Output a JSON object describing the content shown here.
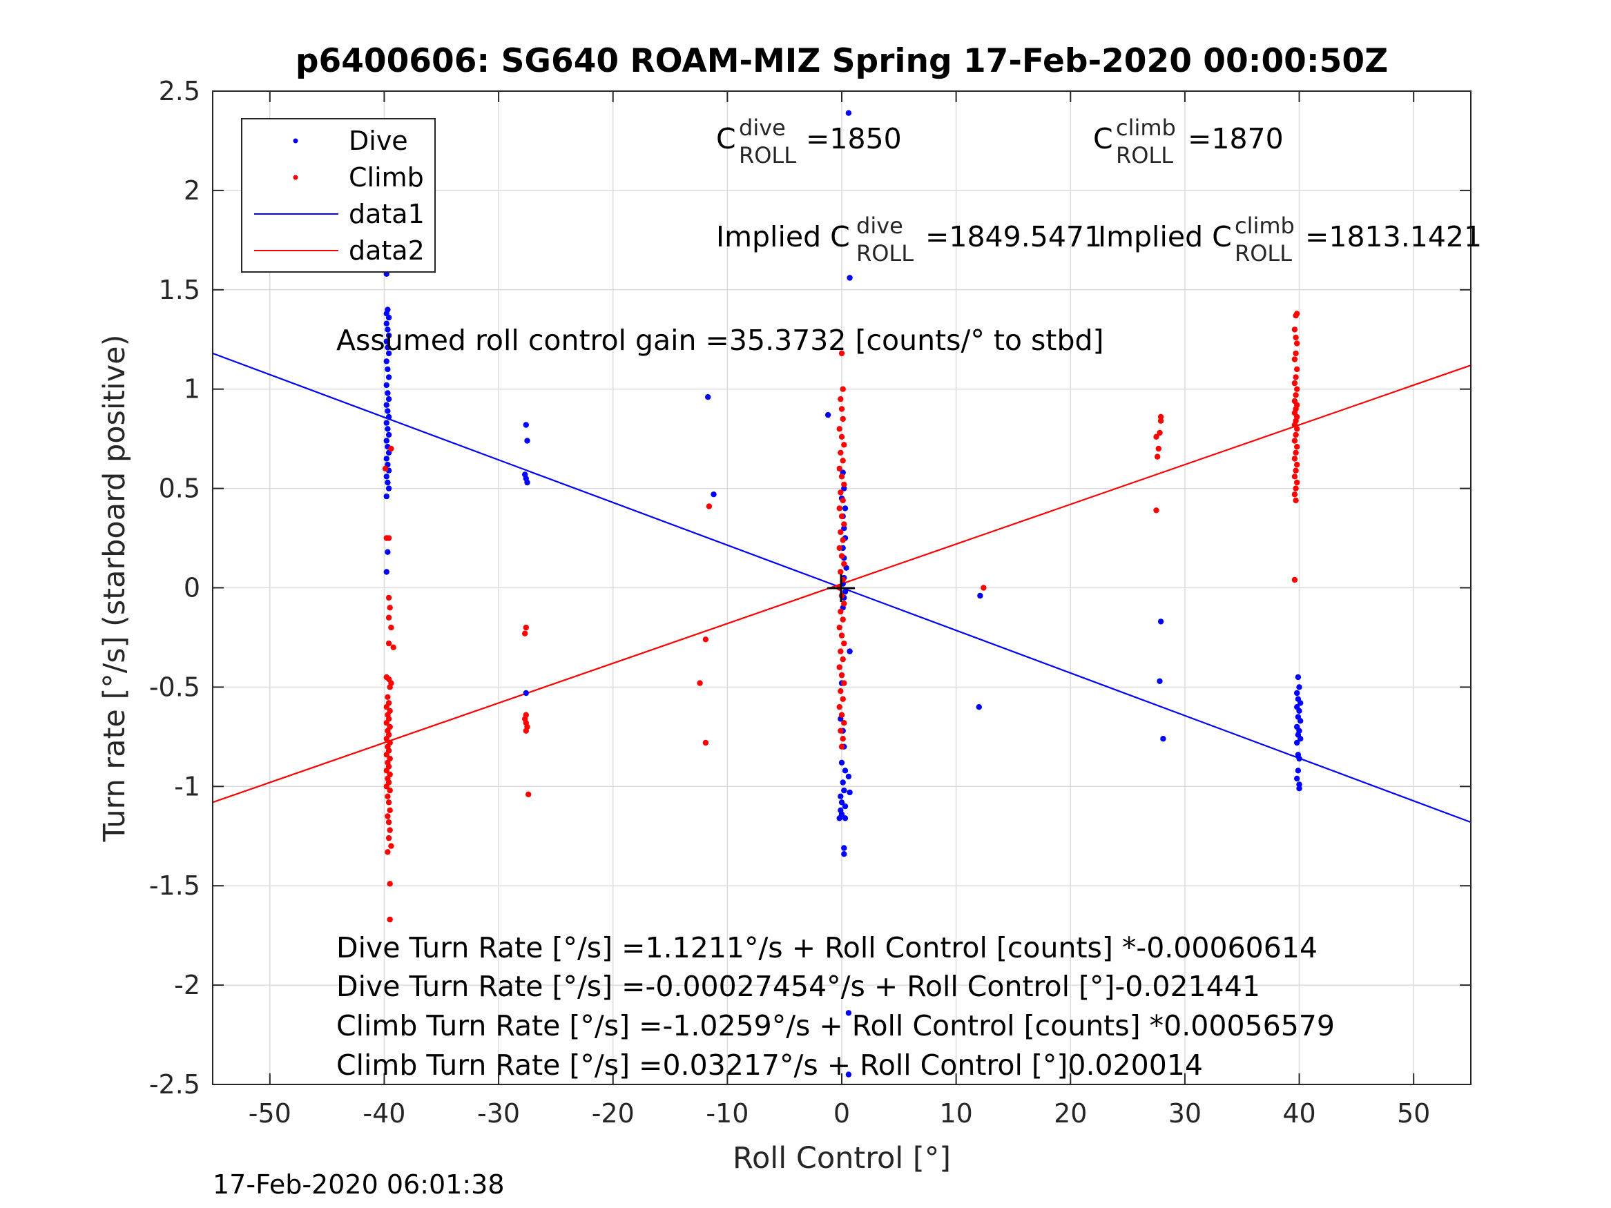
{
  "chart_data": {
    "type": "scatter",
    "title": "p6400606: SG640 ROAM-MIZ Spring 17-Feb-2020 00:00:50Z",
    "xlabel": "Roll Control [°]",
    "ylabel": "Turn rate [°/s] (starboard positive)",
    "xlim": [
      -55,
      55
    ],
    "ylim": [
      -2.5,
      2.5
    ],
    "xticks": [
      "-50",
      "-40",
      "-30",
      "-20",
      "-10",
      "0",
      "10",
      "20",
      "30",
      "40",
      "50"
    ],
    "yticks": [
      "2.5",
      "2",
      "1.5",
      "1",
      "0.5",
      "0",
      "-0.5",
      "-1",
      "-1.5",
      "-2",
      "-2.5"
    ],
    "grid": true,
    "legend_position": "top-left",
    "legend": [
      "Dive",
      "Climb",
      "data1",
      "data2"
    ],
    "colors": {
      "dive": "#0000ff",
      "climb": "#ff0000",
      "axis": "#262626",
      "grid": "#dcdcdc"
    },
    "annotations": {
      "c_dive": {
        "base": "C",
        "sup": "dive",
        "sub": "ROLL",
        "value": "=1850"
      },
      "c_climb": {
        "base": "C",
        "sup": "climb",
        "sub": "ROLL",
        "value": "=1870"
      },
      "implied_dive": {
        "prefix": "Implied C",
        "sup": "dive",
        "sub": "ROLL",
        "value": "=1849.5471"
      },
      "implied_climb": {
        "prefix": "Implied C",
        "sup": "climb",
        "sub": "ROLL",
        "value": "=1813.1421"
      },
      "gain": "Assumed roll control gain =35.3732 [counts/° to stbd]",
      "eq1": "Dive Turn Rate [°/s] =1.1211°/s + Roll Control [counts] *-0.00060614",
      "eq2": "Dive Turn Rate [°/s] =-0.00027454°/s + Roll Control [°]-0.021441",
      "eq3": "Climb Turn Rate [°/s] =-1.0259°/s + Roll Control [counts] *0.00056579",
      "eq4": "Climb Turn Rate [°/s] =0.03217°/s + Roll Control [°]0.020014"
    },
    "timestamp": "17-Feb-2020 06:01:38",
    "series": [
      {
        "name": "Dive",
        "kind": "points",
        "points": [
          [
            -39.8,
            1.58
          ],
          [
            -39.7,
            1.4
          ],
          [
            -39.8,
            1.38
          ],
          [
            -39.6,
            1.36
          ],
          [
            -39.8,
            1.33
          ],
          [
            -39.7,
            1.3
          ],
          [
            -39.6,
            1.27
          ],
          [
            -39.8,
            1.24
          ],
          [
            -39.7,
            1.21
          ],
          [
            -39.6,
            1.18
          ],
          [
            -39.8,
            1.14
          ],
          [
            -39.7,
            1.1
          ],
          [
            -39.6,
            1.06
          ],
          [
            -39.8,
            1.02
          ],
          [
            -39.7,
            0.98
          ],
          [
            -39.6,
            0.95
          ],
          [
            -39.8,
            0.92
          ],
          [
            -39.7,
            0.89
          ],
          [
            -39.6,
            0.86
          ],
          [
            -39.8,
            0.83
          ],
          [
            -39.7,
            0.8
          ],
          [
            -39.6,
            0.77
          ],
          [
            -39.8,
            0.74
          ],
          [
            -39.7,
            0.71
          ],
          [
            -39.6,
            0.68
          ],
          [
            -39.8,
            0.65
          ],
          [
            -39.7,
            0.62
          ],
          [
            -39.6,
            0.59
          ],
          [
            -39.8,
            0.56
          ],
          [
            -39.7,
            0.53
          ],
          [
            -39.6,
            0.5
          ],
          [
            -39.8,
            0.46
          ],
          [
            -39.7,
            0.18
          ],
          [
            -39.8,
            0.08
          ],
          [
            -27.6,
            0.82
          ],
          [
            -27.5,
            0.74
          ],
          [
            -27.7,
            0.57
          ],
          [
            -27.6,
            0.55
          ],
          [
            -27.5,
            0.53
          ],
          [
            -27.6,
            -0.53
          ],
          [
            -11.7,
            0.96
          ],
          [
            -11.2,
            0.47
          ],
          [
            -1.2,
            0.87
          ],
          [
            0.6,
            2.39
          ],
          [
            0.7,
            1.56
          ],
          [
            0.1,
            0.58
          ],
          [
            0.2,
            0.5
          ],
          [
            0.0,
            0.45
          ],
          [
            0.3,
            0.4
          ],
          [
            0.1,
            0.36
          ],
          [
            0.2,
            0.3
          ],
          [
            0.3,
            0.25
          ],
          [
            0.1,
            0.2
          ],
          [
            0.2,
            0.15
          ],
          [
            0.4,
            0.1
          ],
          [
            0.2,
            0.05
          ],
          [
            0.1,
            0.02
          ],
          [
            0.3,
            -0.02
          ],
          [
            0.2,
            -0.05
          ],
          [
            0.1,
            -0.1
          ],
          [
            0.7,
            -0.32
          ],
          [
            0.0,
            -0.48
          ],
          [
            -0.1,
            -0.66
          ],
          [
            0.1,
            -0.72
          ],
          [
            0.2,
            -0.8
          ],
          [
            0.0,
            -0.88
          ],
          [
            0.3,
            -0.92
          ],
          [
            0.6,
            -0.95
          ],
          [
            0.1,
            -0.98
          ],
          [
            0.2,
            -1.02
          ],
          [
            0.7,
            -1.03
          ],
          [
            -0.1,
            -1.05
          ],
          [
            0.0,
            -1.08
          ],
          [
            0.3,
            -1.1
          ],
          [
            -0.1,
            -1.12
          ],
          [
            0.0,
            -1.14
          ],
          [
            0.3,
            -1.16
          ],
          [
            -0.2,
            -1.16
          ],
          [
            0.2,
            -1.31
          ],
          [
            0.2,
            -1.34
          ],
          [
            0.6,
            -2.14
          ],
          [
            0.6,
            -2.45
          ],
          [
            12.1,
            -0.04
          ],
          [
            12.0,
            -0.6
          ],
          [
            27.9,
            -0.17
          ],
          [
            27.8,
            -0.47
          ],
          [
            28.1,
            -0.76
          ],
          [
            39.9,
            -0.45
          ],
          [
            40.0,
            -0.5
          ],
          [
            39.8,
            -0.53
          ],
          [
            39.9,
            -0.56
          ],
          [
            40.1,
            -0.58
          ],
          [
            39.8,
            -0.6
          ],
          [
            40.0,
            -0.62
          ],
          [
            39.9,
            -0.65
          ],
          [
            40.1,
            -0.67
          ],
          [
            39.8,
            -0.7
          ],
          [
            40.0,
            -0.72
          ],
          [
            39.9,
            -0.74
          ],
          [
            40.1,
            -0.76
          ],
          [
            39.8,
            -0.78
          ],
          [
            39.9,
            -0.84
          ],
          [
            40.0,
            -0.86
          ],
          [
            39.9,
            -0.92
          ],
          [
            39.8,
            -0.96
          ],
          [
            40.0,
            -0.99
          ],
          [
            40.0,
            -1.01
          ]
        ]
      },
      {
        "name": "Climb",
        "kind": "points",
        "points": [
          [
            -39.4,
            0.7
          ],
          [
            -39.9,
            0.6
          ],
          [
            -39.8,
            0.25
          ],
          [
            -39.6,
            0.25
          ],
          [
            -39.6,
            -0.05
          ],
          [
            -39.5,
            -0.1
          ],
          [
            -39.6,
            -0.15
          ],
          [
            -39.4,
            -0.2
          ],
          [
            -39.6,
            -0.28
          ],
          [
            -39.2,
            -0.3
          ],
          [
            -39.8,
            -0.45
          ],
          [
            -39.6,
            -0.46
          ],
          [
            -39.4,
            -0.48
          ],
          [
            -39.5,
            -0.5
          ],
          [
            -39.7,
            -0.55
          ],
          [
            -39.6,
            -0.58
          ],
          [
            -39.8,
            -0.6
          ],
          [
            -39.5,
            -0.62
          ],
          [
            -39.7,
            -0.64
          ],
          [
            -39.6,
            -0.66
          ],
          [
            -39.8,
            -0.68
          ],
          [
            -39.5,
            -0.7
          ],
          [
            -39.7,
            -0.72
          ],
          [
            -39.6,
            -0.74
          ],
          [
            -39.8,
            -0.76
          ],
          [
            -39.5,
            -0.78
          ],
          [
            -39.7,
            -0.8
          ],
          [
            -39.6,
            -0.82
          ],
          [
            -39.8,
            -0.84
          ],
          [
            -39.5,
            -0.86
          ],
          [
            -39.7,
            -0.88
          ],
          [
            -39.6,
            -0.9
          ],
          [
            -39.8,
            -0.92
          ],
          [
            -39.5,
            -0.94
          ],
          [
            -39.7,
            -0.96
          ],
          [
            -39.6,
            -0.98
          ],
          [
            -39.8,
            -1.0
          ],
          [
            -39.5,
            -1.02
          ],
          [
            -39.7,
            -1.05
          ],
          [
            -39.6,
            -1.08
          ],
          [
            -39.5,
            -1.12
          ],
          [
            -39.7,
            -1.15
          ],
          [
            -39.6,
            -1.18
          ],
          [
            -39.5,
            -1.22
          ],
          [
            -39.6,
            -1.26
          ],
          [
            -39.4,
            -1.3
          ],
          [
            -39.7,
            -1.33
          ],
          [
            -39.5,
            -1.49
          ],
          [
            -39.5,
            -1.67
          ],
          [
            -27.6,
            -0.2
          ],
          [
            -27.7,
            -0.23
          ],
          [
            -27.6,
            -0.64
          ],
          [
            -27.7,
            -0.66
          ],
          [
            -27.6,
            -0.68
          ],
          [
            -27.5,
            -0.7
          ],
          [
            -27.6,
            -0.72
          ],
          [
            -27.4,
            -1.04
          ],
          [
            -11.6,
            0.41
          ],
          [
            -11.9,
            -0.26
          ],
          [
            -12.4,
            -0.48
          ],
          [
            -11.9,
            -0.78
          ],
          [
            0.0,
            1.18
          ],
          [
            0.1,
            1.0
          ],
          [
            -0.1,
            0.95
          ],
          [
            0.0,
            0.9
          ],
          [
            0.1,
            0.85
          ],
          [
            -0.2,
            0.8
          ],
          [
            0.0,
            0.76
          ],
          [
            0.2,
            0.72
          ],
          [
            -0.1,
            0.68
          ],
          [
            0.1,
            0.64
          ],
          [
            -0.2,
            0.6
          ],
          [
            0.0,
            0.56
          ],
          [
            0.2,
            0.52
          ],
          [
            -0.1,
            0.48
          ],
          [
            0.1,
            0.44
          ],
          [
            -0.2,
            0.4
          ],
          [
            0.0,
            0.36
          ],
          [
            0.2,
            0.32
          ],
          [
            -0.1,
            0.28
          ],
          [
            0.1,
            0.24
          ],
          [
            -0.2,
            0.2
          ],
          [
            0.0,
            0.16
          ],
          [
            0.2,
            0.12
          ],
          [
            -0.1,
            0.08
          ],
          [
            0.1,
            0.04
          ],
          [
            -0.2,
            0.0
          ],
          [
            0.0,
            -0.04
          ],
          [
            0.2,
            -0.08
          ],
          [
            -0.1,
            -0.12
          ],
          [
            0.1,
            -0.16
          ],
          [
            -0.2,
            -0.2
          ],
          [
            0.0,
            -0.24
          ],
          [
            0.2,
            -0.28
          ],
          [
            -0.1,
            -0.32
          ],
          [
            0.1,
            -0.36
          ],
          [
            -0.2,
            -0.4
          ],
          [
            0.0,
            -0.44
          ],
          [
            0.2,
            -0.48
          ],
          [
            -0.1,
            -0.52
          ],
          [
            0.1,
            -0.56
          ],
          [
            -0.2,
            -0.6
          ],
          [
            0.0,
            -0.64
          ],
          [
            0.2,
            -0.68
          ],
          [
            -0.1,
            -0.72
          ],
          [
            0.1,
            -0.76
          ],
          [
            0.0,
            -0.8
          ],
          [
            12.4,
            0.0
          ],
          [
            27.5,
            0.39
          ],
          [
            27.6,
            0.66
          ],
          [
            27.7,
            0.7
          ],
          [
            27.5,
            0.76
          ],
          [
            27.8,
            0.78
          ],
          [
            27.9,
            0.84
          ],
          [
            27.9,
            0.86
          ],
          [
            39.7,
            1.37
          ],
          [
            39.8,
            1.38
          ],
          [
            39.6,
            1.3
          ],
          [
            39.7,
            1.26
          ],
          [
            39.8,
            1.23
          ],
          [
            39.7,
            1.18
          ],
          [
            39.6,
            1.15
          ],
          [
            39.8,
            1.1
          ],
          [
            39.7,
            1.06
          ],
          [
            39.6,
            1.03
          ],
          [
            39.8,
            1.0
          ],
          [
            39.7,
            0.97
          ],
          [
            39.6,
            0.94
          ],
          [
            39.8,
            0.92
          ],
          [
            39.7,
            0.9
          ],
          [
            39.6,
            0.88
          ],
          [
            39.8,
            0.86
          ],
          [
            39.7,
            0.84
          ],
          [
            39.6,
            0.82
          ],
          [
            39.8,
            0.8
          ],
          [
            39.7,
            0.77
          ],
          [
            39.6,
            0.74
          ],
          [
            39.8,
            0.71
          ],
          [
            39.7,
            0.68
          ],
          [
            39.6,
            0.65
          ],
          [
            39.8,
            0.62
          ],
          [
            39.7,
            0.59
          ],
          [
            39.6,
            0.56
          ],
          [
            39.8,
            0.53
          ],
          [
            39.7,
            0.5
          ],
          [
            39.6,
            0.47
          ],
          [
            39.7,
            0.44
          ],
          [
            39.6,
            0.04
          ]
        ]
      },
      {
        "name": "data1",
        "kind": "line",
        "x": [
          -55,
          55
        ],
        "y": [
          1.18,
          -1.18
        ]
      },
      {
        "name": "data2",
        "kind": "line",
        "x": [
          -55,
          55
        ],
        "y": [
          -1.08,
          1.12
        ]
      }
    ]
  }
}
